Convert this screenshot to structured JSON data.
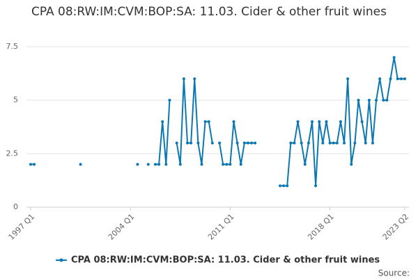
{
  "chart_data": {
    "type": "line",
    "title": "CPA 08:RW:IM:CVM:BOP:SA: 11.03. Cider & other fruit wines",
    "categories": [
      "1997 Q1",
      null,
      null,
      null,
      null,
      null,
      null,
      null,
      null,
      null,
      null,
      null,
      null,
      null,
      null,
      null,
      null,
      null,
      null,
      null,
      null,
      null,
      null,
      null,
      null,
      null,
      null,
      null,
      "2004 Q1",
      null,
      null,
      null,
      null,
      null,
      null,
      null,
      null,
      null,
      null,
      null,
      null,
      null,
      null,
      null,
      null,
      null,
      null,
      null,
      null,
      null,
      null,
      null,
      null,
      null,
      null,
      null,
      "2011 Q1",
      null,
      null,
      null,
      null,
      null,
      null,
      null,
      null,
      null,
      null,
      null,
      null,
      null,
      null,
      null,
      null,
      null,
      null,
      null,
      null,
      null,
      null,
      null,
      null,
      null,
      null,
      null,
      "2018 Q1",
      null,
      null,
      null,
      null,
      null,
      null,
      null,
      null,
      null,
      null,
      null,
      null,
      null,
      null,
      null,
      null,
      null,
      null,
      null,
      null,
      "2023 Q2"
    ],
    "series": [
      {
        "name": "CPA 08:RW:IM:CVM:BOP:SA: 11.03. Cider & other fruit wines",
        "color": "#0b78b4",
        "values": [
          2,
          2,
          null,
          null,
          null,
          null,
          null,
          null,
          null,
          null,
          null,
          null,
          null,
          null,
          2,
          null,
          null,
          null,
          null,
          null,
          null,
          null,
          null,
          null,
          null,
          null,
          null,
          null,
          null,
          null,
          2,
          null,
          null,
          2,
          null,
          2,
          2,
          4,
          2,
          5,
          null,
          3,
          2,
          6,
          3,
          3,
          6,
          3,
          2,
          4,
          4,
          3,
          null,
          3,
          2,
          2,
          2,
          4,
          3,
          2,
          3,
          3,
          3,
          3,
          null,
          null,
          null,
          null,
          null,
          null,
          1,
          1,
          1,
          3,
          3,
          4,
          3,
          2,
          3,
          4,
          1,
          4,
          3,
          4,
          3,
          3,
          3,
          4,
          3,
          6,
          2,
          3,
          5,
          4,
          3,
          5,
          3,
          5,
          6,
          5,
          5,
          6,
          7,
          6,
          6,
          6
        ]
      }
    ],
    "ylim": [
      0,
      7.5
    ],
    "yticks": [
      0,
      2.5,
      5,
      7.5
    ],
    "grid": true,
    "source": "Source:"
  }
}
